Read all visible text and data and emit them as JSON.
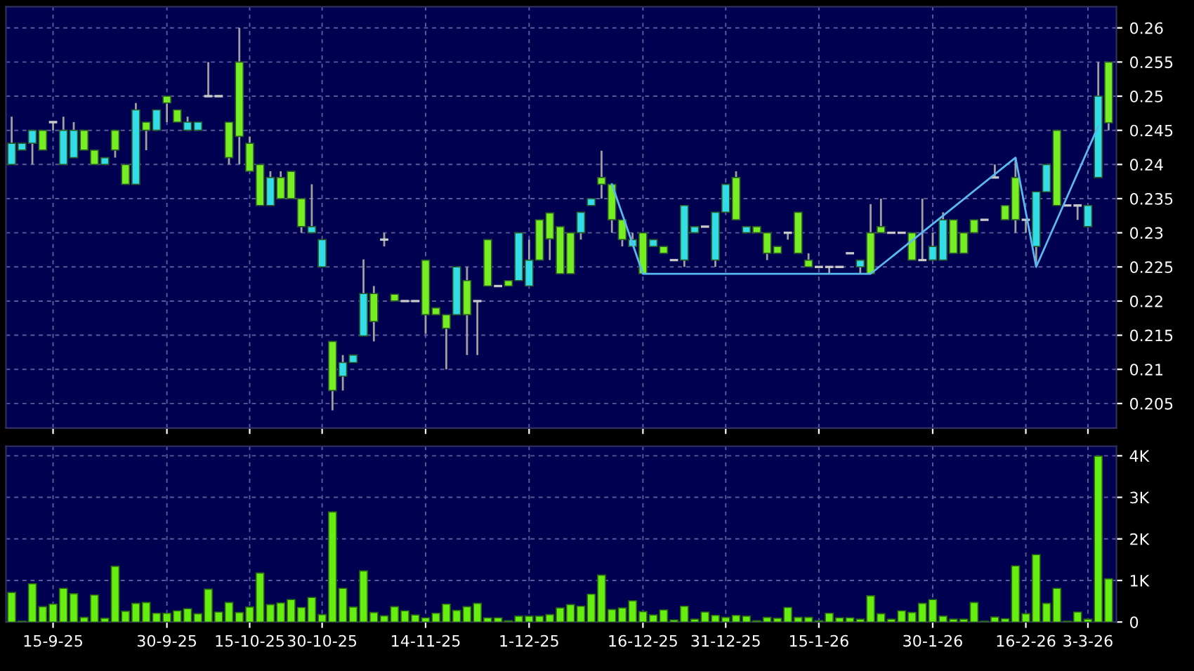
{
  "chart_data": [
    {
      "type": "candlestick",
      "categories": [
        null,
        null,
        null,
        null,
        null,
        null,
        null,
        null,
        null,
        null,
        null,
        null,
        null,
        null,
        null,
        null,
        null,
        null,
        null,
        null,
        null,
        null,
        null,
        null,
        null,
        null,
        null,
        null,
        null,
        null,
        null,
        null,
        null,
        null,
        null,
        null,
        null,
        null,
        null,
        null,
        null,
        null,
        null,
        null,
        null,
        null,
        null,
        null,
        null,
        null,
        null,
        null,
        null,
        null,
        null,
        null,
        null,
        null,
        null,
        null,
        null,
        null,
        null,
        null,
        null,
        null,
        null,
        null,
        null,
        null,
        null,
        null,
        null,
        null,
        null,
        null,
        null,
        null,
        null,
        null,
        null,
        null,
        null,
        null,
        null,
        null,
        null,
        null,
        null,
        null,
        null,
        null,
        null,
        null,
        null,
        null,
        null,
        null,
        null,
        null,
        null,
        null,
        null,
        null,
        null,
        null,
        null
      ],
      "ohlc": [
        [
          0.2431,
          0.247,
          0.24,
          0.24
        ],
        [
          0.2431,
          0.2431,
          0.2421,
          0.2421
        ],
        [
          0.245,
          0.245,
          0.24,
          0.2431
        ],
        [
          0.2421,
          0.245,
          0.2421,
          0.245
        ],
        [
          0.2462,
          0.2462,
          0.245,
          0.2462
        ],
        [
          0.245,
          0.247,
          0.24,
          0.24
        ],
        [
          0.245,
          0.2462,
          0.241,
          0.241
        ],
        [
          0.2421,
          0.245,
          0.2421,
          0.245
        ],
        [
          0.24,
          0.2421,
          0.24,
          0.2421
        ],
        [
          0.241,
          0.241,
          0.24,
          0.24
        ],
        [
          0.2421,
          0.245,
          0.241,
          0.245
        ],
        [
          0.2371,
          0.24,
          0.2371,
          0.24
        ],
        [
          0.248,
          0.249,
          0.2371,
          0.2371
        ],
        [
          0.245,
          0.2462,
          0.2421,
          0.2462
        ],
        [
          0.248,
          0.248,
          0.245,
          0.245
        ],
        [
          0.249,
          0.25,
          0.2462,
          0.25
        ],
        [
          0.2462,
          0.248,
          0.2462,
          0.248
        ],
        [
          0.2462,
          0.247,
          0.245,
          0.245
        ],
        [
          0.2462,
          0.2462,
          0.245,
          0.245
        ],
        [
          0.25,
          0.255,
          0.25,
          0.25
        ],
        [
          0.25,
          0.25,
          0.25,
          0.25
        ],
        [
          0.241,
          0.2462,
          0.24,
          0.2462
        ],
        [
          0.2441,
          0.26,
          0.24,
          0.255
        ],
        [
          0.239,
          0.2441,
          0.239,
          0.2431
        ],
        [
          0.234,
          0.24,
          0.234,
          0.24
        ],
        [
          0.2381,
          0.239,
          0.234,
          0.234
        ],
        [
          0.235,
          0.239,
          0.235,
          0.2381
        ],
        [
          0.235,
          0.239,
          0.235,
          0.239
        ],
        [
          0.2309,
          0.235,
          0.23,
          0.235
        ],
        [
          0.2309,
          0.2371,
          0.23,
          0.23
        ],
        [
          0.229,
          0.229,
          0.225,
          0.225
        ],
        [
          0.2069,
          0.2141,
          0.204,
          0.2141
        ],
        [
          0.211,
          0.2121,
          0.2069,
          0.209
        ],
        [
          0.2121,
          0.2121,
          0.211,
          0.211
        ],
        [
          0.2211,
          0.2261,
          0.2149,
          0.2149
        ],
        [
          0.217,
          0.2222,
          0.2141,
          0.2211
        ],
        [
          0.229,
          0.23,
          0.228,
          0.229
        ],
        [
          0.22,
          0.221,
          0.22,
          0.221
        ],
        [
          0.22,
          0.22,
          0.22,
          0.22
        ],
        [
          0.22,
          0.22,
          0.22,
          0.22
        ],
        [
          0.218,
          0.226,
          0.2152,
          0.226
        ],
        [
          0.218,
          0.219,
          0.218,
          0.219
        ],
        [
          0.216,
          0.218,
          0.21,
          0.218
        ],
        [
          0.225,
          0.225,
          0.218,
          0.218
        ],
        [
          0.218,
          0.225,
          0.2121,
          0.223
        ],
        [
          0.22,
          0.22,
          0.2121,
          0.22
        ],
        [
          0.2222,
          0.229,
          0.2222,
          0.229
        ],
        [
          0.2222,
          0.2222,
          0.2222,
          0.2222
        ],
        [
          0.2222,
          0.223,
          0.2222,
          0.223
        ],
        [
          0.23,
          0.23,
          0.223,
          0.223
        ],
        [
          0.226,
          0.229,
          0.2222,
          0.2222
        ],
        [
          0.226,
          0.2319,
          0.226,
          0.2319
        ],
        [
          0.2291,
          0.2329,
          0.226,
          0.2329
        ],
        [
          0.224,
          0.2309,
          0.224,
          0.2309
        ],
        [
          0.224,
          0.23,
          0.224,
          0.23
        ],
        [
          0.233,
          0.233,
          0.229,
          0.23
        ],
        [
          0.235,
          0.235,
          0.234,
          0.234
        ],
        [
          0.2371,
          0.242,
          0.235,
          0.2381
        ],
        [
          0.2319,
          0.2371,
          0.23,
          0.2371
        ],
        [
          0.229,
          0.2319,
          0.228,
          0.2319
        ],
        [
          0.229,
          0.23,
          0.228,
          0.228
        ],
        [
          0.224,
          0.23,
          0.224,
          0.23
        ],
        [
          0.229,
          0.229,
          0.228,
          0.228
        ],
        [
          0.227,
          0.228,
          0.227,
          0.228
        ],
        [
          0.226,
          0.226,
          0.226,
          0.226
        ],
        [
          0.234,
          0.234,
          0.225,
          0.226
        ],
        [
          0.2309,
          0.2309,
          0.23,
          0.23
        ],
        [
          0.2309,
          0.2309,
          0.2309,
          0.2309
        ],
        [
          0.233,
          0.233,
          0.225,
          0.226
        ],
        [
          0.2371,
          0.2371,
          0.233,
          0.233
        ],
        [
          0.2319,
          0.239,
          0.2319,
          0.2381
        ],
        [
          0.2309,
          0.2309,
          0.23,
          0.23
        ],
        [
          0.23,
          0.2309,
          0.23,
          0.2309
        ],
        [
          0.227,
          0.23,
          0.226,
          0.23
        ],
        [
          0.227,
          0.228,
          0.227,
          0.228
        ],
        [
          0.23,
          0.23,
          0.229,
          0.23
        ],
        [
          0.227,
          0.233,
          0.227,
          0.233
        ],
        [
          0.225,
          0.227,
          0.225,
          0.226
        ],
        [
          0.225,
          0.225,
          0.225,
          0.225
        ],
        [
          0.225,
          0.225,
          0.224,
          0.225
        ],
        [
          0.225,
          0.225,
          0.225,
          0.225
        ],
        [
          0.227,
          0.227,
          0.227,
          0.227
        ],
        [
          0.226,
          0.226,
          0.224,
          0.225
        ],
        [
          0.224,
          0.2342,
          0.224,
          0.23
        ],
        [
          0.23,
          0.235,
          0.23,
          0.2309
        ],
        [
          0.23,
          0.23,
          0.23,
          0.23
        ],
        [
          0.23,
          0.23,
          0.23,
          0.23
        ],
        [
          0.226,
          0.23,
          0.226,
          0.23
        ],
        [
          0.226,
          0.235,
          0.226,
          0.226
        ],
        [
          0.228,
          0.23,
          0.226,
          0.226
        ],
        [
          0.2319,
          0.233,
          0.226,
          0.226
        ],
        [
          0.227,
          0.2319,
          0.227,
          0.2319
        ],
        [
          0.227,
          0.23,
          0.227,
          0.23
        ],
        [
          0.23,
          0.2319,
          0.23,
          0.2319
        ],
        [
          0.2319,
          0.2319,
          0.2319,
          0.2319
        ],
        [
          0.2381,
          0.24,
          0.2381,
          0.2381
        ],
        [
          0.2319,
          0.234,
          0.2319,
          0.234
        ],
        [
          0.2319,
          0.241,
          0.23,
          0.2381
        ],
        [
          0.2319,
          0.2319,
          0.23,
          0.2319
        ],
        [
          0.236,
          0.236,
          0.225,
          0.228
        ],
        [
          0.24,
          0.24,
          0.236,
          0.236
        ],
        [
          0.234,
          0.245,
          0.234,
          0.245
        ],
        [
          0.234,
          0.234,
          0.234,
          0.234
        ],
        [
          0.234,
          0.234,
          0.2319,
          0.234
        ],
        [
          0.234,
          0.234,
          0.2309,
          0.2309
        ],
        [
          0.25,
          0.255,
          0.2381,
          0.2381
        ],
        [
          0.2461,
          0.255,
          0.245,
          0.255
        ]
      ],
      "colors": [
        "#33dde8",
        "#33dde8",
        "#33dde8",
        "#77ee22",
        "#c8c8c8",
        "#33dde8",
        "#33dde8",
        "#77ee22",
        "#77ee22",
        "#33dde8",
        "#77ee22",
        "#77ee22",
        "#33dde8",
        "#77ee22",
        "#33dde8",
        "#77ee22",
        "#77ee22",
        "#33dde8",
        "#33dde8",
        "#c8c8c8",
        "#c8c8c8",
        "#77ee22",
        "#77ee22",
        "#77ee22",
        "#77ee22",
        "#33dde8",
        "#77ee22",
        "#77ee22",
        "#77ee22",
        "#33dde8",
        "#33dde8",
        "#77ee22",
        "#33dde8",
        "#33dde8",
        "#33dde8",
        "#77ee22",
        "#c8c8c8",
        "#77ee22",
        "#c8c8c8",
        "#c8c8c8",
        "#77ee22",
        "#77ee22",
        "#77ee22",
        "#33dde8",
        "#77ee22",
        "#c8c8c8",
        "#77ee22",
        "#c8c8c8",
        "#77ee22",
        "#33dde8",
        "#33dde8",
        "#77ee22",
        "#77ee22",
        "#77ee22",
        "#77ee22",
        "#33dde8",
        "#33dde8",
        "#77ee22",
        "#77ee22",
        "#77ee22",
        "#33dde8",
        "#77ee22",
        "#33dde8",
        "#77ee22",
        "#c8c8c8",
        "#33dde8",
        "#33dde8",
        "#c8c8c8",
        "#33dde8",
        "#33dde8",
        "#77ee22",
        "#33dde8",
        "#77ee22",
        "#77ee22",
        "#77ee22",
        "#c8c8c8",
        "#77ee22",
        "#77ee22",
        "#c8c8c8",
        "#c8c8c8",
        "#c8c8c8",
        "#c8c8c8",
        "#33dde8",
        "#77ee22",
        "#77ee22",
        "#c8c8c8",
        "#c8c8c8",
        "#77ee22",
        "#c8c8c8",
        "#33dde8",
        "#33dde8",
        "#77ee22",
        "#77ee22",
        "#77ee22",
        "#c8c8c8",
        "#c8c8c8",
        "#77ee22",
        "#77ee22",
        "#c8c8c8",
        "#33dde8",
        "#33dde8",
        "#77ee22",
        "#c8c8c8",
        "#c8c8c8",
        "#33dde8",
        "#33dde8",
        "#77ee22"
      ],
      "series": [
        {
          "type": "line",
          "color": "#5ab8f0",
          "values": [
            null,
            null,
            null,
            null,
            null,
            null,
            null,
            null,
            null,
            null,
            null,
            null,
            null,
            null,
            null,
            null,
            null,
            null,
            null,
            null,
            null,
            null,
            null,
            null,
            null,
            null,
            null,
            null,
            null,
            null,
            null,
            null,
            null,
            null,
            null,
            null,
            null,
            null,
            null,
            null,
            null,
            null,
            null,
            null,
            null,
            null,
            null,
            null,
            null,
            null,
            null,
            null,
            null,
            null,
            null,
            null,
            null,
            null,
            0.2371,
            null,
            null,
            0.224,
            null,
            null,
            null,
            null,
            null,
            null,
            null,
            null,
            null,
            null,
            null,
            null,
            null,
            null,
            null,
            null,
            null,
            null,
            null,
            null,
            null,
            0.224,
            null,
            null,
            null,
            null,
            null,
            null,
            null,
            null,
            null,
            null,
            null,
            null,
            null,
            0.241,
            null,
            0.225,
            null,
            null,
            null,
            null,
            null,
            0.2456,
            null
          ]
        }
      ],
      "ylim": [
        0.2014,
        0.2631
      ],
      "yticks": [
        0.205,
        0.21,
        0.215,
        0.22,
        0.225,
        0.23,
        0.235,
        0.24,
        0.245,
        0.25,
        0.255,
        0.26
      ],
      "grid": true,
      "tick_labels": "y"
    },
    {
      "type": "bar",
      "categories": [
        null,
        null,
        null,
        null,
        "15-9-25",
        null,
        null,
        null,
        null,
        null,
        null,
        null,
        null,
        null,
        null,
        "30-9-25",
        null,
        null,
        null,
        null,
        null,
        null,
        null,
        "15-10-25",
        null,
        null,
        null,
        null,
        null,
        null,
        "30-10-25",
        null,
        null,
        null,
        null,
        null,
        null,
        null,
        null,
        null,
        "14-11-25",
        null,
        null,
        null,
        null,
        null,
        null,
        null,
        null,
        null,
        "1-12-25",
        null,
        null,
        null,
        null,
        null,
        null,
        null,
        null,
        null,
        null,
        "16-12-25",
        null,
        null,
        null,
        null,
        null,
        null,
        null,
        "31-12-25",
        null,
        null,
        null,
        null,
        null,
        null,
        null,
        null,
        "15-1-26",
        null,
        null,
        null,
        null,
        null,
        null,
        null,
        null,
        null,
        null,
        "30-1-26",
        null,
        null,
        null,
        null,
        null,
        null,
        null,
        null,
        "16-2-26",
        null,
        null,
        null,
        null,
        null,
        "3-3-26",
        null,
        null
      ],
      "values": [
        0.71,
        0.02,
        0.92,
        0.37,
        0.43,
        0.81,
        0.68,
        0.11,
        0.65,
        0.09,
        1.34,
        0.26,
        0.45,
        0.47,
        0.21,
        0.21,
        0.27,
        0.32,
        0.2,
        0.79,
        0.24,
        0.47,
        0.23,
        0.36,
        1.18,
        0.42,
        0.46,
        0.54,
        0.35,
        0.59,
        0.18,
        2.65,
        0.81,
        0.36,
        1.23,
        0.23,
        0.15,
        0.37,
        0.27,
        0.17,
        0.1,
        0.21,
        0.43,
        0.28,
        0.37,
        0.45,
        0.1,
        0.1,
        0.03,
        0.14,
        0.14,
        0.14,
        0.18,
        0.34,
        0.42,
        0.38,
        0.67,
        1.13,
        0.3,
        0.34,
        0.51,
        0.25,
        0.17,
        0.29,
        0.05,
        0.38,
        0.07,
        0.24,
        0.16,
        0.11,
        0.16,
        0.14,
        0.03,
        0.11,
        0.09,
        0.35,
        0.11,
        0.11,
        0.03,
        0.21,
        0.1,
        0.1,
        0.07,
        0.63,
        0.2,
        0.07,
        0.27,
        0.23,
        0.45,
        0.54,
        0.14,
        0.07,
        0.07,
        0.47,
        0.02,
        0.12,
        0.08,
        1.35,
        0.2,
        1.62,
        0.45,
        0.81,
        0.02,
        0.24,
        0.07,
        3.99,
        1.04
      ],
      "color": "#66ee11",
      "ylim": [
        0,
        4.23
      ],
      "yticks": [
        0,
        {
          "value": 1,
          "label": "1K"
        },
        {
          "value": 2,
          "label": "2K"
        },
        {
          "value": 3,
          "label": "3K"
        },
        {
          "value": 4,
          "label": "4K"
        }
      ],
      "grid": true
    }
  ]
}
